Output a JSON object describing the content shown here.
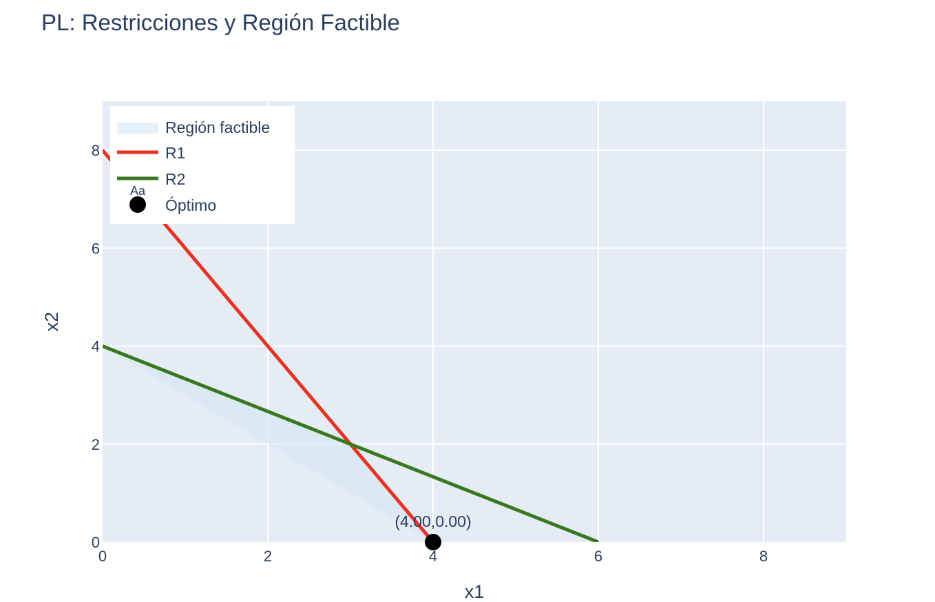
{
  "chart_data": {
    "type": "line",
    "title": "PL: Restricciones y Región Factible",
    "xlabel": "x1",
    "ylabel": "x2",
    "xlim": [
      0,
      9
    ],
    "ylim": [
      0,
      9
    ],
    "x_ticks": [
      0,
      2,
      4,
      6,
      8
    ],
    "y_ticks": [
      0,
      2,
      4,
      6,
      8
    ],
    "grid": true,
    "legend_position": "top-left",
    "background_color": "#e5ecf6",
    "series": [
      {
        "name": "Región factible",
        "kind": "fill",
        "color": "#d6e6f3",
        "points": [
          [
            0,
            4
          ],
          [
            3,
            2
          ],
          [
            4,
            0
          ],
          [
            0,
            4
          ]
        ]
      },
      {
        "name": "R1",
        "kind": "line",
        "color": "#e53323",
        "points": [
          [
            0,
            8
          ],
          [
            4,
            0
          ]
        ]
      },
      {
        "name": "R2",
        "kind": "line",
        "color": "#38791f",
        "points": [
          [
            0,
            4
          ],
          [
            6,
            0
          ]
        ]
      },
      {
        "name": "Óptimo",
        "kind": "marker",
        "color": "#000000",
        "points": [
          [
            4,
            0
          ]
        ],
        "label": "(4.00,0.00)"
      }
    ],
    "legend_marker_text": "Aa"
  }
}
